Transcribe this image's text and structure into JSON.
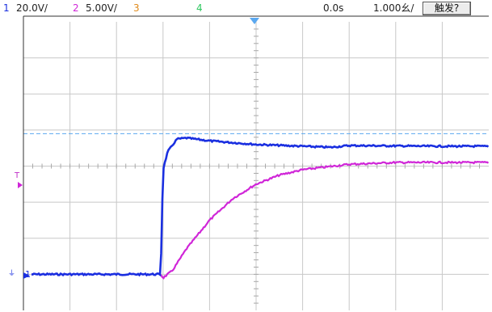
{
  "header": {
    "ch1_num": "1",
    "ch1_scale": "20.0V/",
    "ch2_num": "2",
    "ch2_scale": "5.00V/",
    "ch3_num": "3",
    "ch4_num": "4",
    "time_offset": "0.0s",
    "timebase": "1.000幺/",
    "trigger_button": "触发?"
  },
  "markers": {
    "trigger_level": "T",
    "ground_ref": "1"
  },
  "colors": {
    "ch1": "#1a2fe0",
    "ch2": "#d026d8",
    "ch3": "#e08a1a",
    "ch4": "#2ec860",
    "trigger_line": "#5aa8f0",
    "grid": "#c8c8c8",
    "border": "#303030"
  },
  "chart_data": {
    "type": "line",
    "grid": true,
    "divisions": {
      "x": 10,
      "y": 8
    },
    "units": "divisions from center",
    "series": [
      {
        "channel": "1",
        "x": [
          -5.0,
          -2.05,
          -2.0,
          -1.9,
          -1.7,
          -1.5,
          -1.0,
          0.0,
          1.0,
          1.6,
          2.0,
          3.0,
          4.0,
          5.0
        ],
        "values": [
          -3.0,
          -3.0,
          -0.1,
          0.4,
          0.75,
          0.78,
          0.7,
          0.6,
          0.55,
          0.52,
          0.57,
          0.56,
          0.55,
          0.55
        ]
      },
      {
        "channel": "2",
        "x": [
          -5.0,
          -2.05,
          -2.0,
          -1.8,
          -1.5,
          -1.0,
          -0.5,
          0.0,
          0.5,
          1.0,
          2.0,
          3.0,
          4.0,
          5.0
        ],
        "values": [
          -3.0,
          -3.0,
          -3.1,
          -2.9,
          -2.3,
          -1.5,
          -0.9,
          -0.5,
          -0.25,
          -0.1,
          0.05,
          0.1,
          0.1,
          0.1
        ]
      }
    ],
    "trigger_level_div": 0.9
  }
}
